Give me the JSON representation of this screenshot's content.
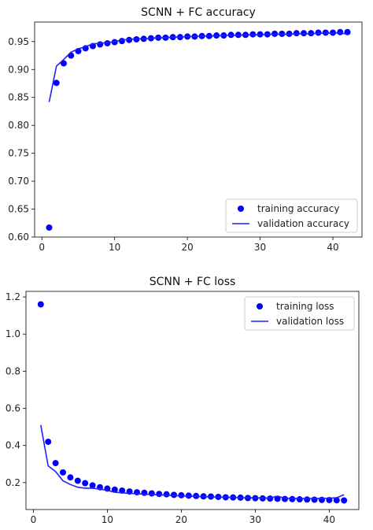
{
  "chart_data": [
    {
      "type": "line",
      "title": "SCNN + FC accuracy",
      "xlabel": "",
      "ylabel": "",
      "xlim": [
        -1,
        44
      ],
      "ylim": [
        0.6,
        0.985
      ],
      "xticks": [
        0,
        10,
        20,
        30,
        40
      ],
      "yticks": [
        0.6,
        0.65,
        0.7,
        0.75,
        0.8,
        0.85,
        0.9,
        0.95
      ],
      "ytick_labels": [
        "0.60",
        "0.65",
        "0.70",
        "0.75",
        "0.80",
        "0.85",
        "0.90",
        "0.95"
      ],
      "legend_position": "lower-right",
      "grid": false,
      "series": [
        {
          "name": "training accuracy",
          "style": "markers",
          "color": "#0000ff",
          "x": [
            1,
            2,
            3,
            4,
            5,
            6,
            7,
            8,
            9,
            10,
            11,
            12,
            13,
            14,
            15,
            16,
            17,
            18,
            19,
            20,
            21,
            22,
            23,
            24,
            25,
            26,
            27,
            28,
            29,
            30,
            31,
            32,
            33,
            34,
            35,
            36,
            37,
            38,
            39,
            40,
            41,
            42
          ],
          "y": [
            0.617,
            0.876,
            0.911,
            0.925,
            0.933,
            0.938,
            0.942,
            0.945,
            0.947,
            0.949,
            0.951,
            0.953,
            0.954,
            0.955,
            0.956,
            0.957,
            0.957,
            0.958,
            0.958,
            0.959,
            0.959,
            0.96,
            0.96,
            0.961,
            0.961,
            0.962,
            0.962,
            0.962,
            0.963,
            0.963,
            0.963,
            0.964,
            0.964,
            0.964,
            0.965,
            0.965,
            0.965,
            0.966,
            0.966,
            0.966,
            0.967,
            0.967
          ]
        },
        {
          "name": "validation accuracy",
          "style": "line",
          "color": "#1f1fff",
          "x": [
            1,
            2,
            3,
            4,
            5,
            6,
            7,
            8,
            9,
            10,
            11,
            12,
            13,
            14,
            15,
            16,
            17,
            18,
            19,
            20,
            21,
            22,
            23,
            24,
            25,
            26,
            27,
            28,
            29,
            30,
            31,
            32,
            33,
            34,
            35,
            36,
            37,
            38,
            39,
            40,
            41,
            42
          ],
          "y": [
            0.842,
            0.906,
            0.918,
            0.931,
            0.937,
            0.941,
            0.946,
            0.947,
            0.948,
            0.95,
            0.953,
            0.954,
            0.955,
            0.955,
            0.956,
            0.957,
            0.957,
            0.958,
            0.958,
            0.959,
            0.959,
            0.96,
            0.96,
            0.96,
            0.961,
            0.961,
            0.961,
            0.962,
            0.962,
            0.962,
            0.963,
            0.963,
            0.963,
            0.963,
            0.964,
            0.964,
            0.964,
            0.965,
            0.965,
            0.965,
            0.966,
            0.963
          ]
        }
      ]
    },
    {
      "type": "line",
      "title": "SCNN + FC loss",
      "xlabel": "",
      "ylabel": "",
      "xlim": [
        -1,
        44
      ],
      "ylim": [
        0.055,
        1.23
      ],
      "xticks": [
        0,
        10,
        20,
        30,
        40
      ],
      "yticks": [
        0.2,
        0.4,
        0.6,
        0.8,
        1.0,
        1.2
      ],
      "ytick_labels": [
        "0.2",
        "0.4",
        "0.6",
        "0.8",
        "1.0",
        "1.2"
      ],
      "legend_position": "upper-right",
      "grid": false,
      "series": [
        {
          "name": "training loss",
          "style": "markers",
          "color": "#0000ff",
          "x": [
            1,
            2,
            3,
            4,
            5,
            6,
            7,
            8,
            9,
            10,
            11,
            12,
            13,
            14,
            15,
            16,
            17,
            18,
            19,
            20,
            21,
            22,
            23,
            24,
            25,
            26,
            27,
            28,
            29,
            30,
            31,
            32,
            33,
            34,
            35,
            36,
            37,
            38,
            39,
            40,
            41,
            42
          ],
          "y": [
            1.16,
            0.42,
            0.305,
            0.255,
            0.228,
            0.21,
            0.197,
            0.185,
            0.175,
            0.168,
            0.162,
            0.157,
            0.152,
            0.148,
            0.145,
            0.142,
            0.139,
            0.137,
            0.134,
            0.132,
            0.13,
            0.128,
            0.126,
            0.125,
            0.123,
            0.121,
            0.12,
            0.119,
            0.117,
            0.116,
            0.115,
            0.114,
            0.113,
            0.112,
            0.111,
            0.11,
            0.109,
            0.108,
            0.107,
            0.106,
            0.105,
            0.104
          ]
        },
        {
          "name": "validation loss",
          "style": "line",
          "color": "#1f1fff",
          "x": [
            1,
            2,
            3,
            4,
            5,
            6,
            7,
            8,
            9,
            10,
            11,
            12,
            13,
            14,
            15,
            16,
            17,
            18,
            19,
            20,
            21,
            22,
            23,
            24,
            25,
            26,
            27,
            28,
            29,
            30,
            31,
            32,
            33,
            34,
            35,
            36,
            37,
            38,
            39,
            40,
            41,
            42
          ],
          "y": [
            0.51,
            0.29,
            0.26,
            0.21,
            0.19,
            0.175,
            0.17,
            0.17,
            0.165,
            0.158,
            0.148,
            0.145,
            0.142,
            0.14,
            0.138,
            0.136,
            0.134,
            0.132,
            0.13,
            0.128,
            0.127,
            0.126,
            0.124,
            0.123,
            0.122,
            0.121,
            0.12,
            0.119,
            0.118,
            0.118,
            0.117,
            0.117,
            0.127,
            0.116,
            0.115,
            0.115,
            0.114,
            0.115,
            0.115,
            0.116,
            0.118,
            0.135
          ]
        }
      ]
    }
  ]
}
